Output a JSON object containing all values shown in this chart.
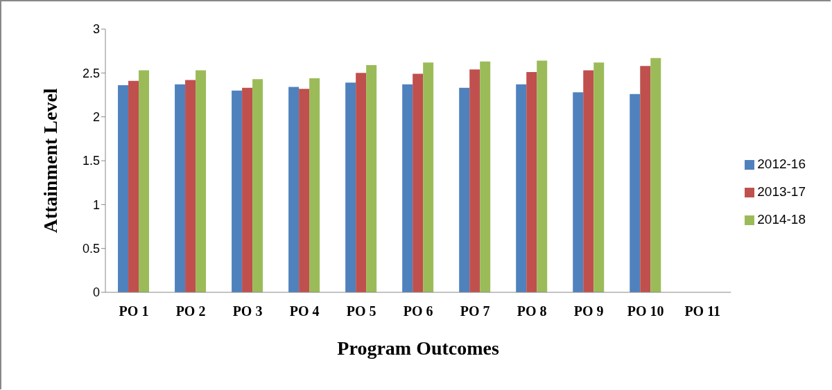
{
  "chart_data": {
    "type": "bar",
    "xlabel": "Program Outcomes",
    "ylabel": "Attainment Level",
    "categories": [
      "PO 1",
      "PO 2",
      "PO 3",
      "PO 4",
      "PO 5",
      "PO 6",
      "PO 7",
      "PO 8",
      "PO 9",
      "PO 10",
      "PO 11"
    ],
    "series": [
      {
        "name": "2012-16",
        "color": "#4f81bd",
        "values": [
          2.36,
          2.37,
          2.3,
          2.34,
          2.39,
          2.37,
          2.33,
          2.37,
          2.28,
          2.26,
          null
        ]
      },
      {
        "name": "2013-17",
        "color": "#c0504d",
        "values": [
          2.41,
          2.42,
          2.33,
          2.32,
          2.5,
          2.49,
          2.54,
          2.51,
          2.53,
          2.58,
          null
        ]
      },
      {
        "name": "2014-18",
        "color": "#9bbb59",
        "values": [
          2.53,
          2.53,
          2.43,
          2.44,
          2.59,
          2.62,
          2.63,
          2.64,
          2.62,
          2.67,
          null
        ]
      }
    ],
    "ylim": [
      0,
      3
    ],
    "yticks": [
      0,
      0.5,
      1,
      1.5,
      2,
      2.5,
      3
    ],
    "grid": false,
    "legend": "right"
  }
}
